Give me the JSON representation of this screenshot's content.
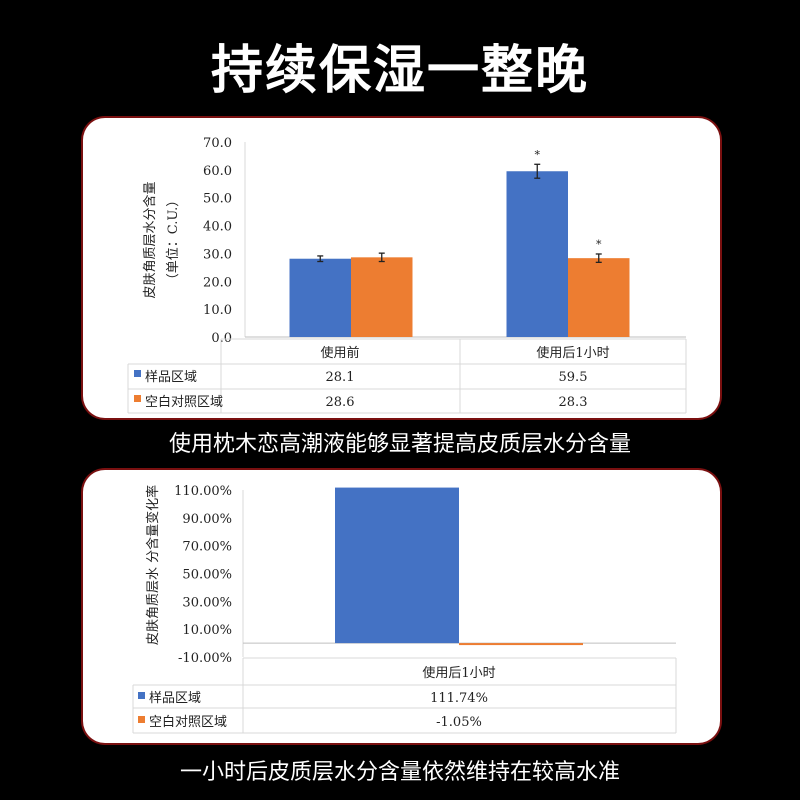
{
  "title": "持续保湿一整晚",
  "colors": {
    "sample": "#4472C4",
    "control": "#ED7D31",
    "background": "#000000",
    "card": "#FFFFFF"
  },
  "captions": [
    "使用枕木恋高潮液能够显著提高皮质层水分含量",
    "一小时后皮质层水分含量依然维持在较高水准"
  ],
  "chart_data": [
    {
      "type": "bar",
      "ylabel": [
        "皮肤角质层水分含量",
        "（单位：C.U.）"
      ],
      "ylim": [
        0,
        70
      ],
      "yticks": [
        "0.0",
        "10.0",
        "20.0",
        "30.0",
        "40.0",
        "50.0",
        "60.0",
        "70.0"
      ],
      "categories": [
        "使用前",
        "使用后1小时"
      ],
      "series": [
        {
          "name": "样品区域",
          "values": [
            28.1,
            59.5
          ],
          "labels": [
            "28.1",
            "59.5"
          ],
          "error": [
            1.0,
            2.5
          ],
          "significance": [
            "",
            "*"
          ]
        },
        {
          "name": "空白对照区域",
          "values": [
            28.6,
            28.3
          ],
          "labels": [
            "28.6",
            "28.3"
          ],
          "error": [
            1.5,
            1.5
          ],
          "significance": [
            "",
            "*"
          ]
        }
      ],
      "grid": false,
      "legend": "data-table"
    },
    {
      "type": "bar",
      "ylabel": [
        "皮肤角质层水 分含量变化率"
      ],
      "ylim": [
        -10,
        110
      ],
      "yticks": [
        "-10.00%",
        "10.00%",
        "30.00%",
        "50.00%",
        "70.00%",
        "90.00%",
        "110.00%"
      ],
      "categories": [
        "使用后1小时"
      ],
      "series": [
        {
          "name": "样品区域",
          "values": [
            111.74
          ],
          "labels": [
            "111.74%"
          ]
        },
        {
          "name": "空白对照区域",
          "values": [
            -1.05
          ],
          "labels": [
            "-1.05%"
          ]
        }
      ],
      "grid": false,
      "legend": "data-table"
    }
  ]
}
